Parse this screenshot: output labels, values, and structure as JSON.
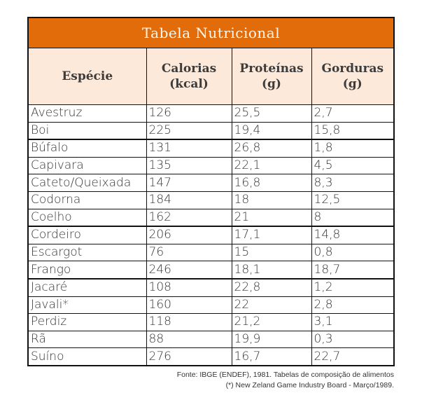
{
  "table": {
    "title": "Tabela Nutricional",
    "colors": {
      "title_bg": "#e36c0a",
      "header_bg": "#fde9d9"
    },
    "headers": [
      {
        "line1": "Espécie",
        "line2": ""
      },
      {
        "line1": "Calorias",
        "line2": "(kcal)"
      },
      {
        "line1": "Proteínas",
        "line2": "(g)"
      },
      {
        "line1": "Gorduras",
        "line2": "(g)"
      }
    ],
    "rows": [
      [
        "Avestruz",
        "126",
        "25,5",
        "2,7"
      ],
      [
        "Boi",
        "225",
        "19,4",
        "15,8"
      ],
      [
        "Búfalo",
        "131",
        "26,8",
        "1,8"
      ],
      [
        "Capivara",
        "135",
        "22,1",
        "4,5"
      ],
      [
        "Cateto/Queixada",
        "147",
        "16,8",
        "8,3"
      ],
      [
        "Codorna",
        "184",
        "18",
        "12,5"
      ],
      [
        "Coelho",
        "162",
        "21",
        "8"
      ],
      [
        "Cordeiro",
        "206",
        "17,1",
        "14,8"
      ],
      [
        "Escargot",
        "76",
        "15",
        "0,8"
      ],
      [
        "Frango",
        "246",
        "18,1",
        "18,7"
      ],
      [
        "Jacaré",
        "108",
        "22,8",
        "1,2"
      ],
      [
        "Javali*",
        "160",
        "22",
        "2,8"
      ],
      [
        "Perdiz",
        "118",
        "21,2",
        "3,1"
      ],
      [
        "Rã",
        "88",
        "19,9",
        "0,3"
      ],
      [
        "Suíno",
        "276",
        "16,7",
        "22,7"
      ]
    ]
  },
  "footer": {
    "line1": "Fonte: IBGE (ENDEF), 1981. Tabelas de composição de alimentos",
    "line2": "(*) New Zeland Game Industry Board - Março/1989."
  }
}
